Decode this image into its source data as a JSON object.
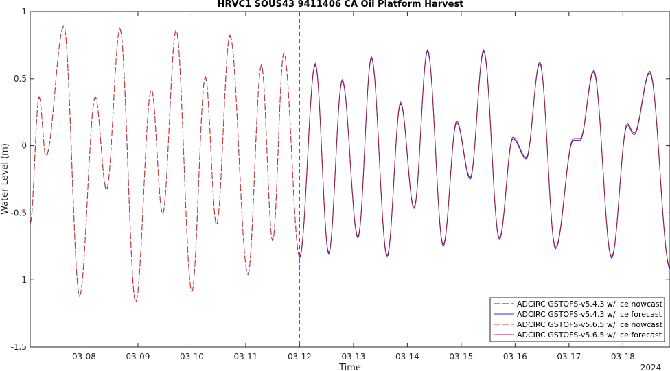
{
  "chart_data": {
    "type": "line",
    "title": "HRVC1 SOUS43 9411406 CA Oil Platform Harvest",
    "xlabel": "Time",
    "ylabel": "Water Level (m)",
    "year_label": "2024",
    "xlim": [
      "2024-03-07 00:00",
      "2024-03-18 21:00"
    ],
    "ylim": [
      -1.5,
      1
    ],
    "yticks": [
      -1.5,
      -1,
      -0.5,
      0,
      0.5,
      1
    ],
    "ytick_labels": [
      "-1.5",
      "-1",
      "-0.5",
      "0",
      "0.5",
      "1"
    ],
    "xticks": [
      "2024-03-08",
      "2024-03-09",
      "2024-03-10",
      "2024-03-11",
      "2024-03-12",
      "2024-03-13",
      "2024-03-14",
      "2024-03-15",
      "2024-03-16",
      "2024-03-17",
      "2024-03-18"
    ],
    "xtick_labels": [
      "03-08",
      "03-09",
      "03-10",
      "03-11",
      "03-12",
      "03-13",
      "03-14",
      "03-15",
      "03-16",
      "03-17",
      "03-18"
    ],
    "nowcast_forecast_divider": "2024-03-12 00:00",
    "grid": false,
    "legend_position": "bottom-right",
    "extrema": [
      [
        "2024-03-07 00:00",
        -0.58
      ],
      [
        "2024-03-07 04:00",
        0.36
      ],
      [
        "2024-03-07 07:00",
        -0.08
      ],
      [
        "2024-03-07 15:00",
        0.89
      ],
      [
        "2024-03-07 22:00",
        -1.12
      ],
      [
        "2024-03-08 05:00",
        0.36
      ],
      [
        "2024-03-08 10:00",
        -0.33
      ],
      [
        "2024-03-08 16:00",
        0.87
      ],
      [
        "2024-03-08 23:00",
        -1.17
      ],
      [
        "2024-03-09 06:00",
        0.42
      ],
      [
        "2024-03-09 11:00",
        -0.51
      ],
      [
        "2024-03-09 17:00",
        0.86
      ],
      [
        "2024-03-10 00:00",
        -1.09
      ],
      [
        "2024-03-10 06:00",
        0.51
      ],
      [
        "2024-03-10 11:00",
        -0.59
      ],
      [
        "2024-03-10 17:00",
        0.82
      ],
      [
        "2024-03-11 01:00",
        -0.96
      ],
      [
        "2024-03-11 07:00",
        0.6
      ],
      [
        "2024-03-11 12:00",
        -0.71
      ],
      [
        "2024-03-11 17:00",
        0.69
      ],
      [
        "2024-03-12 00:00",
        -0.83
      ],
      [
        "2024-03-12 07:00",
        0.61
      ],
      [
        "2024-03-12 13:00",
        -0.8
      ],
      [
        "2024-03-12 19:00",
        0.49
      ],
      [
        "2024-03-13 02:00",
        -0.68
      ],
      [
        "2024-03-13 08:00",
        0.66
      ],
      [
        "2024-03-13 15:00",
        -0.82
      ],
      [
        "2024-03-13 21:00",
        0.32
      ],
      [
        "2024-03-14 03:00",
        -0.46
      ],
      [
        "2024-03-14 09:00",
        0.71
      ],
      [
        "2024-03-14 16:00",
        -0.74
      ],
      [
        "2024-03-14 22:00",
        0.18
      ],
      [
        "2024-03-15 04:00",
        -0.24
      ],
      [
        "2024-03-15 10:00",
        0.71
      ],
      [
        "2024-03-15 17:00",
        -0.69
      ],
      [
        "2024-03-15 23:00",
        0.06
      ],
      [
        "2024-03-16 05:00",
        -0.09
      ],
      [
        "2024-03-16 11:00",
        0.62
      ],
      [
        "2024-03-16 18:00",
        -0.76
      ],
      [
        "2024-03-17 02:00",
        0.05
      ],
      [
        "2024-03-17 05:00",
        0.05
      ],
      [
        "2024-03-17 11:00",
        0.56
      ],
      [
        "2024-03-17 19:00",
        -0.83
      ],
      [
        "2024-03-18 02:00",
        0.16
      ],
      [
        "2024-03-18 05:00",
        0.09
      ],
      [
        "2024-03-18 12:00",
        0.55
      ],
      [
        "2024-03-18 21:00",
        -0.91
      ]
    ],
    "series": [
      {
        "name": "ADCIRC GSTOFS-v5.4.3 w/ ice nowcast",
        "color": "#1f1fa8",
        "style": "dashed",
        "x_range": [
          "2024-03-07 00:00",
          "2024-03-12 00:00"
        ]
      },
      {
        "name": "ADCIRC GSTOFS-v5.4.3 w/ ice forecast",
        "color": "#2b2bd9",
        "style": "solid",
        "x_range": [
          "2024-03-12 00:00",
          "2024-03-18 21:00"
        ]
      },
      {
        "name": "ADCIRC GSTOFS-v5.6.5 w/ ice nowcast",
        "color": "#e0402a",
        "style": "dashed",
        "x_range": [
          "2024-03-07 00:00",
          "2024-03-12 00:00"
        ]
      },
      {
        "name": "ADCIRC GSTOFS-v5.6.5 w/ ice forecast",
        "color": "#a3203a",
        "style": "solid",
        "x_range": [
          "2024-03-12 00:00",
          "2024-03-18 21:00"
        ]
      }
    ]
  }
}
